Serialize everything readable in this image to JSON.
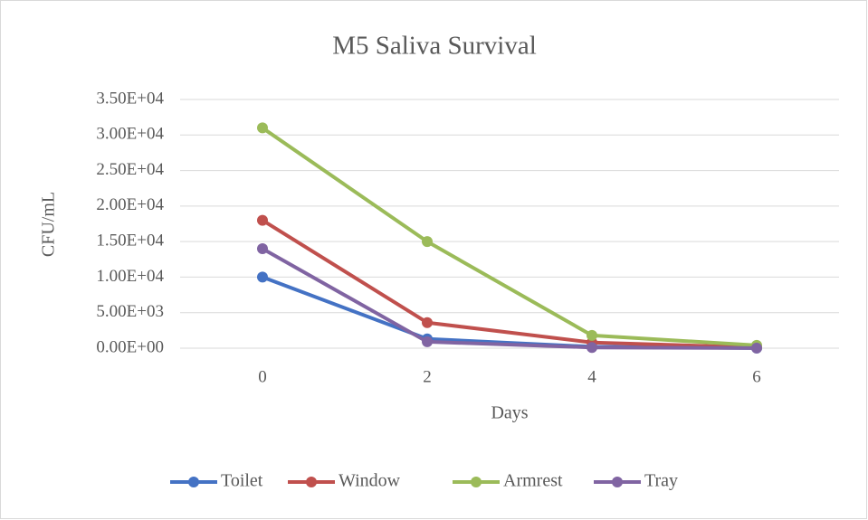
{
  "chart_data": {
    "type": "line",
    "title": "M5 Saliva Survival",
    "x_label": "Days",
    "y_label": "CFU/mL",
    "categories": [
      "0",
      "2",
      "4",
      "6"
    ],
    "series": [
      {
        "name": "Toilet",
        "color": "#4472c4",
        "values": [
          10000,
          1300,
          200,
          20
        ]
      },
      {
        "name": "Window",
        "color": "#c0504d",
        "values": [
          18000,
          3600,
          800,
          100
        ]
      },
      {
        "name": "Armrest",
        "color": "#9bbb59",
        "values": [
          31000,
          15000,
          1800,
          400
        ]
      },
      {
        "name": "Tray",
        "color": "#8064a2",
        "values": [
          14000,
          900,
          100,
          20
        ]
      }
    ],
    "ylim": [
      0,
      35000
    ],
    "yticks": [
      {
        "value": 0,
        "label": "0.00E+00"
      },
      {
        "value": 5000,
        "label": "5.00E+03"
      },
      {
        "value": 10000,
        "label": "1.00E+04"
      },
      {
        "value": 15000,
        "label": "1.50E+04"
      },
      {
        "value": 20000,
        "label": "2.00E+04"
      },
      {
        "value": 25000,
        "label": "2.50E+04"
      },
      {
        "value": 30000,
        "label": "3.00E+04"
      },
      {
        "value": 35000,
        "label": "3.50E+04"
      }
    ],
    "grid": true,
    "legend": "bottom"
  }
}
